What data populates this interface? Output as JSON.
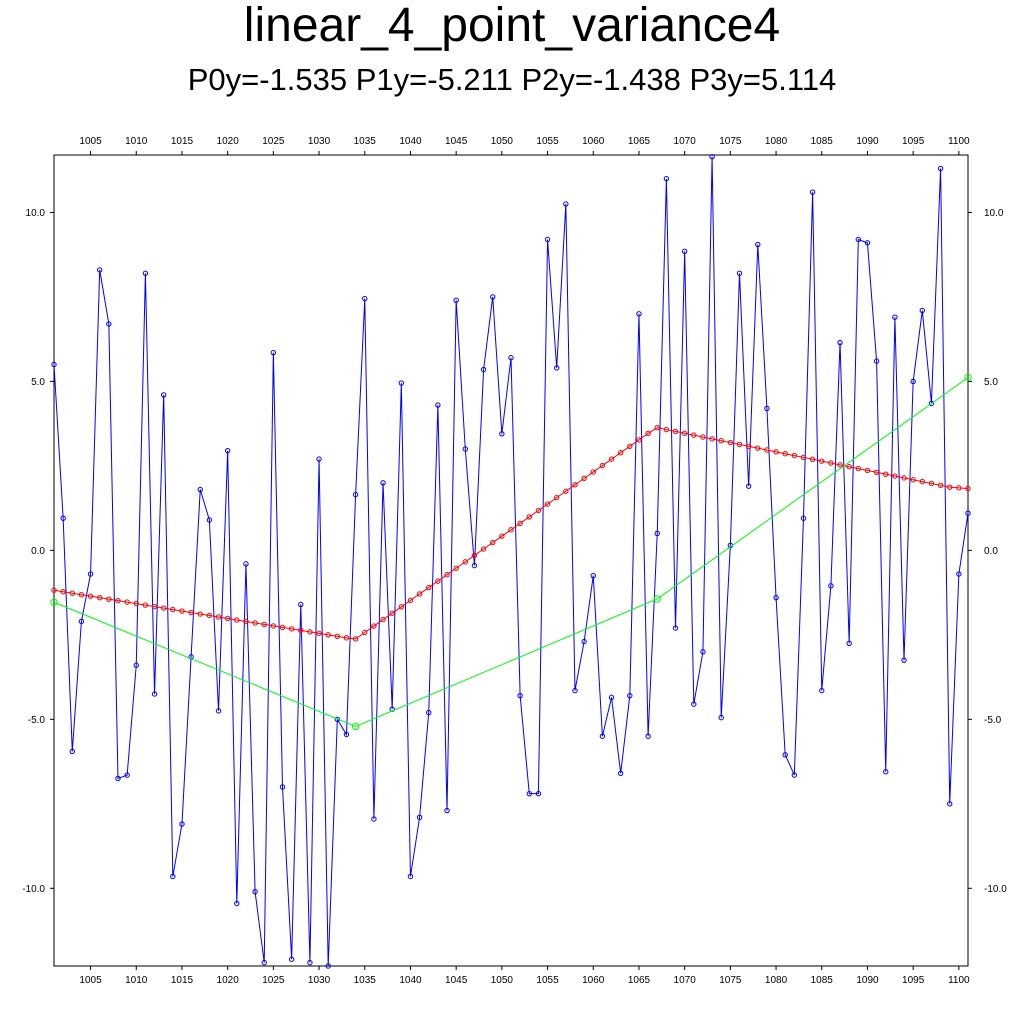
{
  "title": "linear_4_point_variance4",
  "subtitle": "P0y=-1.535 P1y=-5.211 P2y=-1.438 P3y=5.114",
  "chart_data": {
    "type": "line",
    "title": "linear_4_point_variance4",
    "subtitle": "P0y=-1.535 P1y=-5.211 P2y=-1.438 P3y=5.114",
    "xlim": [
      1001,
      1101
    ],
    "ylim": [
      -12.3,
      11.7
    ],
    "x_ticks": [
      1005,
      1010,
      1015,
      1020,
      1025,
      1030,
      1035,
      1040,
      1045,
      1050,
      1055,
      1060,
      1065,
      1070,
      1075,
      1080,
      1085,
      1090,
      1095,
      1100
    ],
    "y_ticks": [
      -10,
      -5,
      0,
      5,
      10
    ],
    "y_tick_labels": [
      "-10.0",
      "-5.0",
      "0.0",
      "5.0",
      "10.0"
    ],
    "grid": false,
    "legend": "none",
    "series": [
      {
        "color": "#0000ff",
        "marker": "circle",
        "x_start": 1001,
        "x_step": 1,
        "values": [
          5.5,
          0.95,
          -5.95,
          -2.1,
          -0.7,
          8.3,
          6.7,
          -6.75,
          -6.65,
          -3.4,
          8.2,
          -4.25,
          4.6,
          -9.65,
          -8.1,
          -3.15,
          1.8,
          0.9,
          -4.75,
          2.95,
          -10.45,
          -0.4,
          -10.1,
          -12.2,
          5.85,
          -7.0,
          -12.1,
          -1.6,
          -12.2,
          2.7,
          -12.3,
          -5.0,
          -5.45,
          1.65,
          7.45,
          -7.95,
          2.0,
          -4.7,
          4.95,
          -9.65,
          -7.9,
          -4.8,
          4.3,
          -7.7,
          7.4,
          3.0,
          -0.45,
          5.35,
          7.5,
          3.45,
          5.7,
          -4.3,
          -7.2,
          -7.2,
          9.2,
          5.4,
          10.25,
          -4.15,
          -2.7,
          -0.75,
          -5.5,
          -4.35,
          -6.6,
          -4.3,
          7.0,
          -5.5,
          0.5,
          11.0,
          -2.3,
          8.85,
          -4.55,
          -3.0,
          11.65,
          -4.95,
          0.15,
          8.2,
          1.9,
          9.05,
          4.2,
          -1.4,
          -6.05,
          -6.65,
          0.95,
          10.6,
          -4.15,
          -1.05,
          6.15,
          -2.75,
          9.2,
          9.1,
          5.6,
          -6.55,
          6.9,
          -3.25,
          5.0,
          7.1,
          4.35,
          11.3,
          -7.5,
          -0.7,
          1.1
        ]
      },
      {
        "color": "#ff0000",
        "marker": "circle",
        "x_start": 1001,
        "x_step": 1,
        "values": [
          -1.18,
          -1.224,
          -1.268,
          -1.312,
          -1.356,
          -1.4,
          -1.444,
          -1.488,
          -1.532,
          -1.576,
          -1.62,
          -1.664,
          -1.708,
          -1.752,
          -1.796,
          -1.84,
          -1.884,
          -1.928,
          -1.972,
          -2.016,
          -2.06,
          -2.104,
          -2.148,
          -2.192,
          -2.236,
          -2.28,
          -2.324,
          -2.368,
          -2.412,
          -2.456,
          -2.5,
          -2.544,
          -2.588,
          -2.62,
          -2.43,
          -2.24,
          -2.05,
          -1.86,
          -1.67,
          -1.48,
          -1.29,
          -1.1,
          -0.91,
          -0.72,
          -0.53,
          -0.34,
          -0.15,
          0.04,
          0.23,
          0.42,
          0.61,
          0.8,
          0.99,
          1.18,
          1.37,
          1.56,
          1.75,
          1.94,
          2.13,
          2.32,
          2.51,
          2.7,
          2.89,
          3.08,
          3.27,
          3.46,
          3.63,
          3.575,
          3.52,
          3.465,
          3.41,
          3.355,
          3.3,
          3.245,
          3.19,
          3.135,
          3.08,
          3.025,
          2.97,
          2.915,
          2.86,
          2.805,
          2.75,
          2.695,
          2.64,
          2.585,
          2.53,
          2.475,
          2.42,
          2.365,
          2.31,
          2.255,
          2.2,
          2.145,
          2.09,
          2.035,
          1.98,
          1.925,
          1.87,
          1.85,
          1.83
        ]
      },
      {
        "color": "#00ff00",
        "marker": "circle",
        "x": [
          1001,
          1034,
          1067,
          1101
        ],
        "values": [
          -1.535,
          -5.211,
          -1.438,
          5.114
        ]
      }
    ]
  }
}
